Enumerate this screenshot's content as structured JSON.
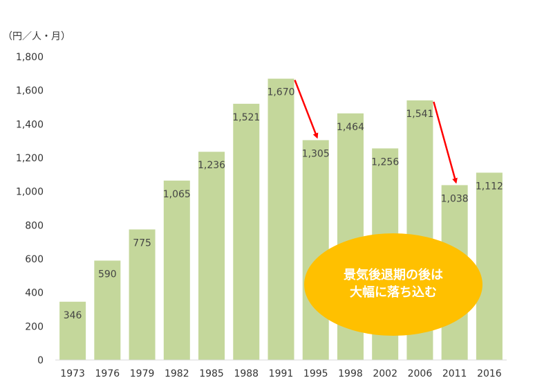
{
  "chart_data": {
    "type": "bar",
    "title": "",
    "xlabel": "",
    "ylabel": "",
    "unit_label": "（円／人・月）",
    "categories": [
      "1973",
      "1976",
      "1979",
      "1982",
      "1985",
      "1988",
      "1991",
      "1995",
      "1998",
      "2002",
      "2006",
      "2011",
      "2016"
    ],
    "values": [
      346,
      590,
      775,
      1065,
      1236,
      1521,
      1670,
      1305,
      1464,
      1256,
      1541,
      1038,
      1112
    ],
    "data_labels": [
      "346",
      "590",
      "775",
      "1,065",
      "1,236",
      "1,521",
      "1,670",
      "1,305",
      "1,464",
      "1,256",
      "1,541",
      "1,038",
      "1,112"
    ],
    "ylim": [
      0,
      1800
    ],
    "yticks": [
      0,
      200,
      400,
      600,
      800,
      1000,
      1200,
      1400,
      1600,
      1800
    ],
    "ytick_labels": [
      "0",
      "200",
      "400",
      "600",
      "800",
      "1,000",
      "1,200",
      "1,400",
      "1,600",
      "1,800"
    ],
    "grid": false,
    "legend": "none",
    "bar_color": "#c4d79b",
    "arrows": [
      {
        "from": "1991",
        "to": "1995",
        "color": "#ff0000"
      },
      {
        "from": "2006",
        "to": "2011",
        "color": "#ff0000"
      }
    ],
    "callout": {
      "lines": [
        "景気後退期の後は",
        "大幅に落ち込む"
      ],
      "color": "#ffc000"
    }
  }
}
